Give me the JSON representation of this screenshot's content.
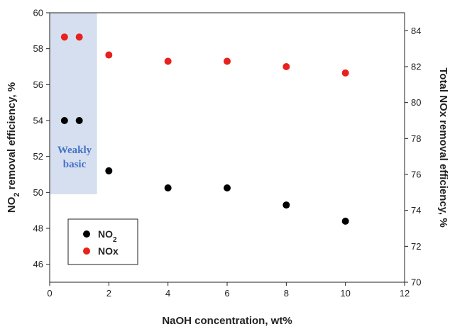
{
  "chart_data": {
    "type": "scatter",
    "xlabel": "NaOH concentration, wt%",
    "ylabel_left_parts": [
      "NO",
      "2",
      " removal efficiency, %"
    ],
    "ylabel_right": "Total NOx removal efficiency, %",
    "xlim": [
      0,
      12
    ],
    "ylim_left": [
      45,
      60
    ],
    "ylim_right": [
      70,
      85
    ],
    "x_ticks": [
      "0",
      "2",
      "4",
      "6",
      "8",
      "10",
      "12"
    ],
    "y_left_ticks": [
      "46",
      "48",
      "50",
      "52",
      "54",
      "56",
      "58",
      "60"
    ],
    "y_right_ticks": [
      "70",
      "72",
      "74",
      "76",
      "78",
      "80",
      "82",
      "84"
    ],
    "series": [
      {
        "name": "NO2",
        "name_parts": [
          "NO",
          "2"
        ],
        "axis": "left",
        "color": "#000000",
        "x": [
          0.5,
          1,
          2,
          4,
          6,
          8,
          10
        ],
        "y": [
          54.0,
          54.0,
          51.2,
          50.25,
          50.25,
          49.3,
          48.4
        ]
      },
      {
        "name": "NOx",
        "name_parts": [
          "NOx",
          ""
        ],
        "axis": "right",
        "color": "#e8211c",
        "x": [
          0.5,
          1,
          2,
          4,
          6,
          8,
          10
        ],
        "y": [
          83.65,
          83.65,
          82.65,
          82.3,
          82.3,
          82.0,
          81.65
        ]
      }
    ],
    "shaded_region": {
      "x_range": [
        0,
        1.6
      ],
      "y_range_left": [
        49.9,
        60
      ],
      "color": "#d6dff0"
    },
    "annotation": {
      "lines": [
        "Weakly",
        "basic"
      ],
      "color": "#4472c4"
    },
    "grid": false,
    "legend_position": "bottom-left"
  }
}
